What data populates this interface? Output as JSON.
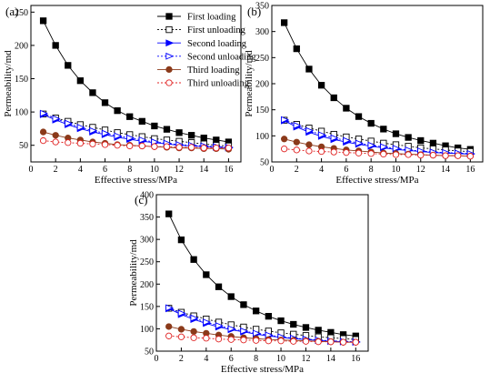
{
  "legend_labels": [
    "First loading",
    "First unloading",
    "Second loading",
    "Second unloading",
    "Third loading",
    "Third unloading"
  ],
  "series_styles": [
    {
      "color": "#000000",
      "marker": "square",
      "filled": true,
      "dashed": false
    },
    {
      "color": "#000000",
      "marker": "square",
      "filled": false,
      "dashed": true
    },
    {
      "color": "#0000ff",
      "marker": "triangle-right",
      "filled": true,
      "dashed": false
    },
    {
      "color": "#0000ff",
      "marker": "triangle-right",
      "filled": false,
      "dashed": true
    },
    {
      "color": "#8b3a1a",
      "marker": "circle",
      "filled": true,
      "dashed": false
    },
    {
      "color": "#e02020",
      "marker": "circle",
      "filled": false,
      "dashed": true
    }
  ],
  "chart_data": [
    {
      "type": "line",
      "panel_label": "(a)",
      "xlabel": "Effective stress/MPa",
      "ylabel": "Permeability/md",
      "xlim": [
        0,
        17
      ],
      "ylim": [
        25,
        260
      ],
      "xticks": [
        "0",
        "2",
        "4",
        "6",
        "8",
        "10",
        "12",
        "14",
        "16"
      ],
      "yticks": [
        "50",
        "100",
        "150",
        "200",
        "250"
      ],
      "legend_position": "top-right",
      "x": [
        1,
        2,
        3,
        4,
        5,
        6,
        7,
        8,
        9,
        10,
        11,
        12,
        13,
        14,
        15,
        16
      ],
      "series": [
        {
          "name": "First loading",
          "values": [
            237,
            200,
            170,
            147,
            129,
            114,
            102,
            93,
            86,
            79,
            74,
            69,
            65,
            61,
            58,
            55
          ]
        },
        {
          "name": "First unloading",
          "values": [
            97,
            91,
            86,
            81,
            77,
            73,
            69,
            66,
            63,
            60,
            58,
            56,
            54,
            52,
            50,
            49
          ]
        },
        {
          "name": "Second loading",
          "values": [
            96,
            88,
            81,
            75,
            70,
            66,
            62,
            59,
            56,
            54,
            52,
            50,
            49,
            48,
            47,
            46
          ]
        },
        {
          "name": "Second unloading",
          "values": [
            98,
            90,
            83,
            77,
            72,
            68,
            64,
            61,
            58,
            55,
            53,
            51,
            50,
            49,
            48,
            47
          ]
        },
        {
          "name": "Third loading",
          "values": [
            70,
            65,
            61,
            58,
            55,
            53,
            51,
            50,
            49,
            48,
            47,
            46,
            46,
            45,
            45,
            44
          ]
        },
        {
          "name": "Third unloading",
          "values": [
            57,
            55,
            54,
            53,
            52,
            51,
            50,
            49,
            49,
            48,
            48,
            47,
            47,
            46,
            46,
            46
          ]
        }
      ]
    },
    {
      "type": "line",
      "panel_label": "(b)",
      "xlabel": "Effective stress/MPa",
      "ylabel": "Permeability/md",
      "xlim": [
        0,
        17
      ],
      "ylim": [
        50,
        350
      ],
      "xticks": [
        "0",
        "2",
        "4",
        "6",
        "8",
        "10",
        "12",
        "14",
        "16"
      ],
      "yticks": [
        "50",
        "100",
        "150",
        "200",
        "250",
        "300",
        "350"
      ],
      "x": [
        1,
        2,
        3,
        4,
        5,
        6,
        7,
        8,
        9,
        10,
        11,
        12,
        13,
        14,
        15,
        16
      ],
      "series": [
        {
          "name": "First loading",
          "values": [
            317,
            267,
            228,
            197,
            173,
            153,
            137,
            124,
            113,
            104,
            97,
            91,
            86,
            81,
            77,
            74
          ]
        },
        {
          "name": "First unloading",
          "values": [
            130,
            122,
            115,
            109,
            103,
            98,
            94,
            90,
            86,
            83,
            80,
            77,
            75,
            73,
            71,
            70
          ]
        },
        {
          "name": "Second loading",
          "values": [
            129,
            117,
            107,
            99,
            93,
            88,
            84,
            80,
            77,
            74,
            72,
            70,
            68,
            67,
            66,
            65
          ]
        },
        {
          "name": "Second unloading",
          "values": [
            131,
            120,
            110,
            102,
            96,
            91,
            86,
            82,
            79,
            76,
            73,
            71,
            69,
            68,
            67,
            66
          ]
        },
        {
          "name": "Third loading",
          "values": [
            94,
            88,
            83,
            79,
            76,
            73,
            71,
            69,
            67,
            66,
            65,
            64,
            63,
            62,
            62,
            61
          ]
        },
        {
          "name": "Third unloading",
          "values": [
            75,
            73,
            71,
            70,
            69,
            68,
            67,
            66,
            65,
            64,
            64,
            63,
            63,
            62,
            62,
            61
          ]
        }
      ]
    },
    {
      "type": "line",
      "panel_label": "(c)",
      "xlabel": "Effective stress/MPa",
      "ylabel": "Permeability/md",
      "xlim": [
        0,
        17
      ],
      "ylim": [
        50,
        400
      ],
      "xticks": [
        "0",
        "2",
        "4",
        "6",
        "8",
        "10",
        "12",
        "14",
        "16"
      ],
      "yticks": [
        "50",
        "100",
        "150",
        "200",
        "250",
        "300",
        "350",
        "400"
      ],
      "x": [
        1,
        2,
        3,
        4,
        5,
        6,
        7,
        8,
        9,
        10,
        11,
        12,
        13,
        14,
        15,
        16
      ],
      "series": [
        {
          "name": "First loading",
          "values": [
            357,
            299,
            255,
            221,
            194,
            172,
            154,
            140,
            128,
            118,
            110,
            103,
            97,
            92,
            87,
            84
          ]
        },
        {
          "name": "First unloading",
          "values": [
            146,
            137,
            129,
            122,
            115,
            109,
            104,
            99,
            95,
            91,
            88,
            85,
            82,
            80,
            78,
            76
          ]
        },
        {
          "name": "Second loading",
          "values": [
            145,
            132,
            121,
            112,
            104,
            98,
            93,
            88,
            84,
            81,
            78,
            76,
            74,
            72,
            71,
            70
          ]
        },
        {
          "name": "Second unloading",
          "values": [
            147,
            135,
            124,
            115,
            107,
            100,
            95,
            90,
            86,
            82,
            79,
            77,
            75,
            73,
            72,
            71
          ]
        },
        {
          "name": "Third loading",
          "values": [
            105,
            99,
            94,
            90,
            86,
            83,
            80,
            78,
            76,
            75,
            74,
            73,
            72,
            71,
            70,
            70
          ]
        },
        {
          "name": "Third unloading",
          "values": [
            84,
            82,
            80,
            79,
            77,
            76,
            75,
            74,
            73,
            73,
            72,
            72,
            71,
            71,
            70,
            70
          ]
        }
      ]
    }
  ]
}
